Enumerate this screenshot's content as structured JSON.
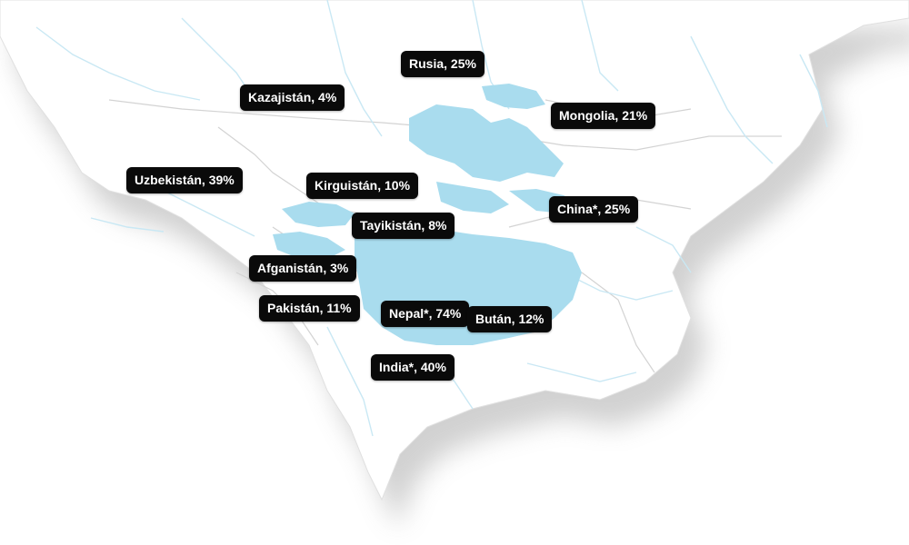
{
  "labels": {
    "rusia": "Rusia, 25%",
    "kazajistan": "Kazajistán, 4%",
    "mongolia": "Mongolia, 21%",
    "uzbekistan": "Uzbekistán, 39%",
    "kirguistan": "Kirguistán, 10%",
    "china": "China*, 25%",
    "tayikistan": "Tayikistán, 8%",
    "afganistan": "Afganistán, 3%",
    "pakistan": "Pakistán, 11%",
    "nepal": "Nepal*, 74%",
    "butan": "Bután, 12%",
    "india": "India*, 40%"
  },
  "colors": {
    "land": "#ffffff",
    "water": "#a9dcee",
    "rivers": "#c9e8f4",
    "borders": "#d3d3d3",
    "label_bg": "#0a0a0a",
    "label_text": "#ffffff"
  }
}
